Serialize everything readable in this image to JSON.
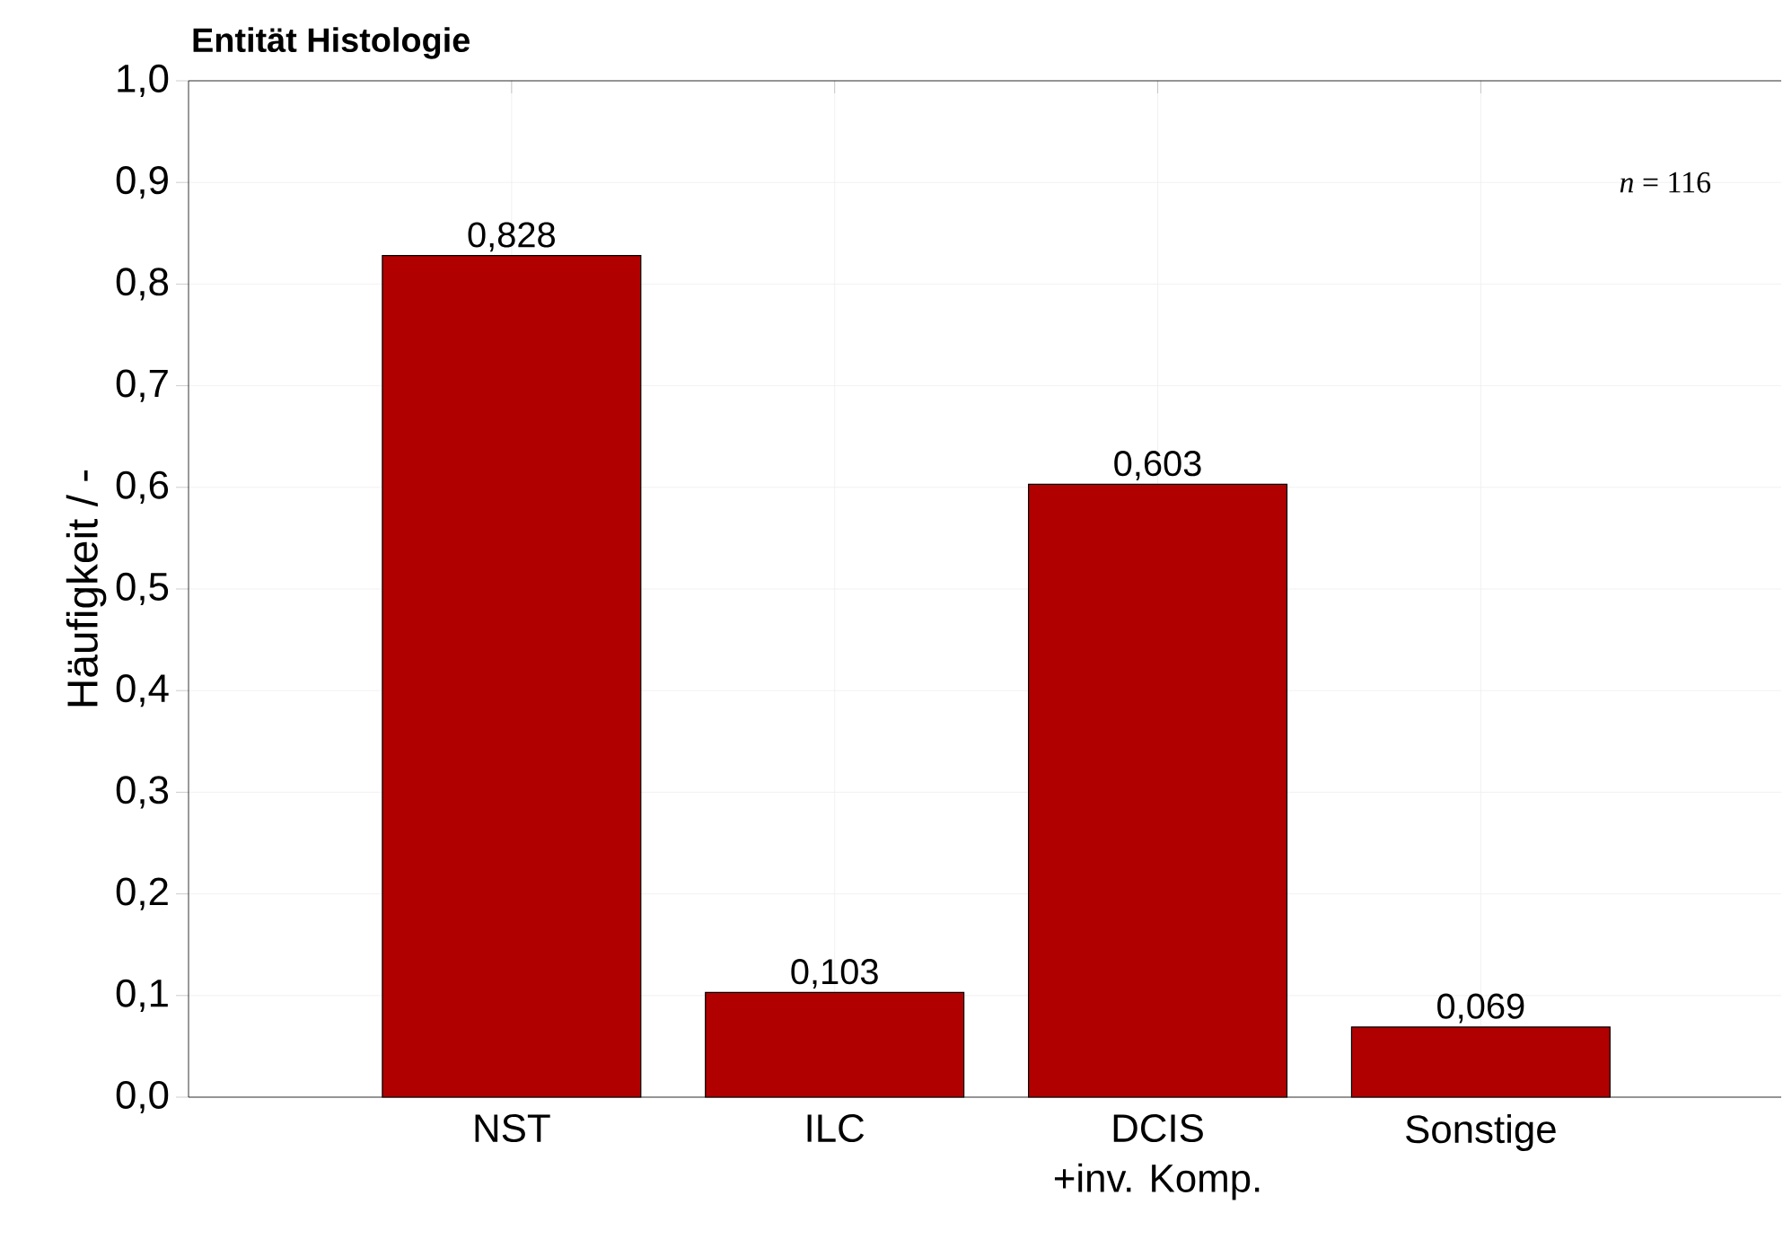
{
  "chart_data": {
    "type": "bar",
    "title": "Entität Histologie",
    "ylabel": "Häufigkeit / -",
    "categories": [
      "NST",
      "ILC",
      "DCIS\n+inv. Komp.",
      "Sonstige"
    ],
    "value_labels": [
      "0,828",
      "0,103",
      "0,603",
      "0,069"
    ],
    "values": [
      0.828,
      0.103,
      0.603,
      0.069
    ],
    "color": "#b00000",
    "ylim": [
      0,
      1.0
    ],
    "yticks": [
      {
        "value": 0,
        "label": "0,0"
      },
      {
        "value": 0.1,
        "label": "0,1"
      },
      {
        "value": 0.2,
        "label": "0,2"
      },
      {
        "value": 0.3,
        "label": "0,3"
      },
      {
        "value": 0.4,
        "label": "0,4"
      },
      {
        "value": 0.5,
        "label": "0,5"
      },
      {
        "value": 0.6,
        "label": "0,6"
      },
      {
        "value": 0.7,
        "label": "0,7"
      },
      {
        "value": 0.8,
        "label": "0,8"
      },
      {
        "value": 0.9,
        "label": "0,9"
      },
      {
        "value": 1.0,
        "label": "1,0"
      }
    ],
    "grid": true,
    "annotations": [
      "*n* = 116"
    ]
  }
}
